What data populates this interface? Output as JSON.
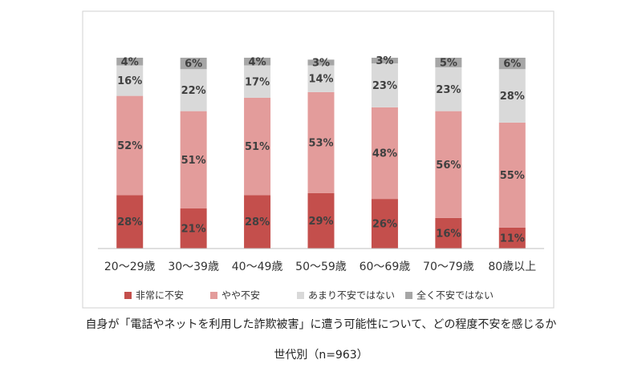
{
  "chart_data": {
    "type": "stacked_bar",
    "title": "自身が「電話やネットを利用した詐欺被害」に遭う可能性について、どの程度不安を感じるか",
    "subtitle": "世代別（n=963）",
    "categories": [
      "20～29歳",
      "30～39歳",
      "40～49歳",
      "50～59歳",
      "60～69歳",
      "70～79歳",
      "80歳以上"
    ],
    "ylim": [
      0,
      100
    ],
    "series": [
      {
        "name": "非常に不安",
        "color": "#c44f4c",
        "values": [
          28,
          21,
          28,
          29,
          26,
          16,
          11
        ],
        "value_labels": [
          "28%",
          "21%",
          "28%",
          "29%",
          "26%",
          "16%",
          "11%"
        ]
      },
      {
        "name": "やや不安",
        "color": "#e39c9b",
        "values": [
          52,
          51,
          51,
          53,
          48,
          56,
          55
        ],
        "value_labels": [
          "52%",
          "51%",
          "51%",
          "53%",
          "48%",
          "56%",
          "55%"
        ]
      },
      {
        "name": "あまり不安ではない",
        "color": "#d9d9d9",
        "values": [
          16,
          22,
          17,
          14,
          23,
          23,
          28
        ],
        "value_labels": [
          "16%",
          "22%",
          "17%",
          "14%",
          "23%",
          "23%",
          "28%"
        ]
      },
      {
        "name": "全く不安ではない",
        "color": "#a6a6a6",
        "values": [
          4,
          6,
          4,
          3,
          3,
          5,
          6
        ],
        "value_labels": [
          "4%",
          "6%",
          "4%",
          "3%",
          "3%",
          "5%",
          "6%"
        ]
      }
    ]
  }
}
